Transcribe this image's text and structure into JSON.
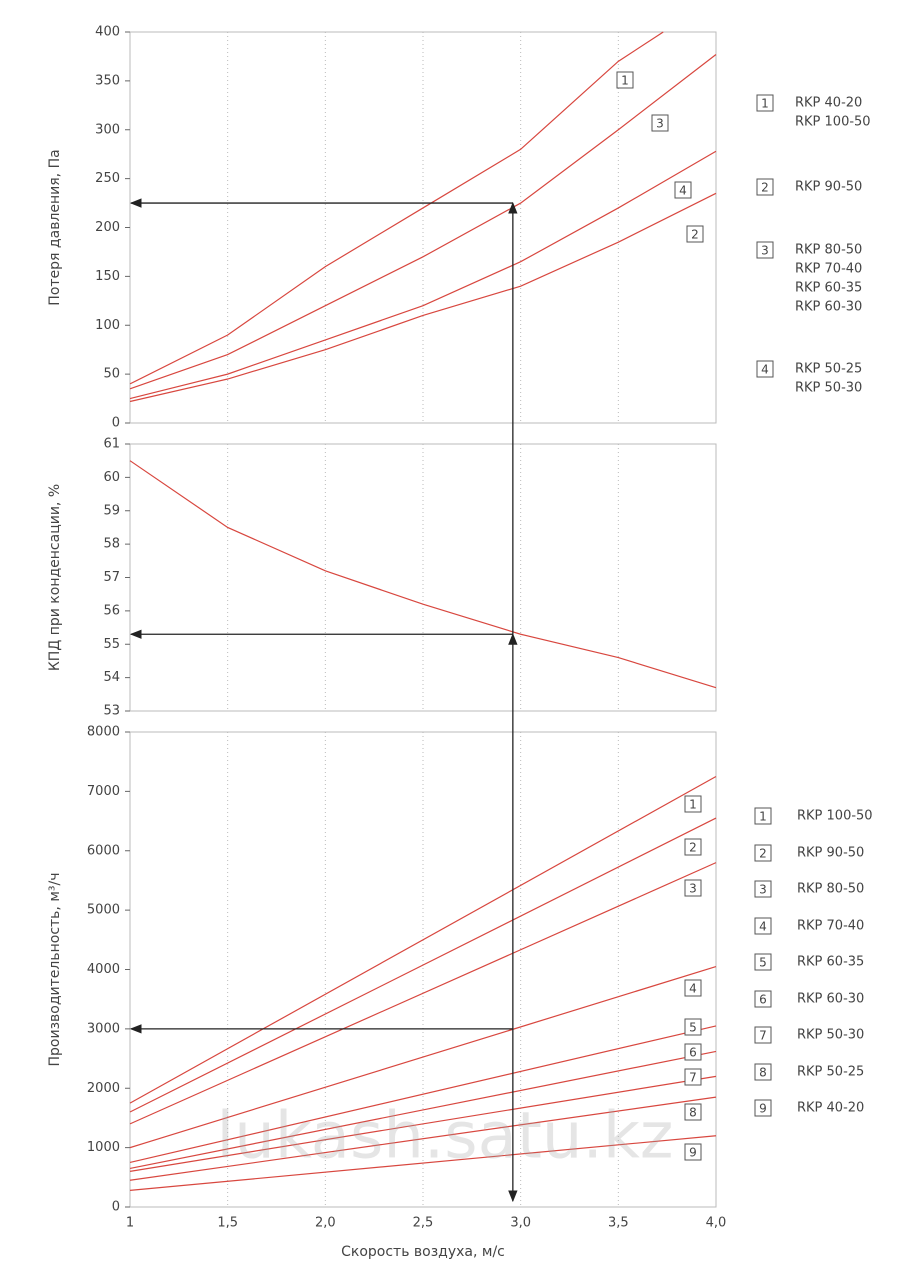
{
  "chart_data": [
    {
      "type": "line",
      "ylabel": "Потеря давления, Па",
      "ylim": [
        0,
        400
      ],
      "yticks": [
        0,
        50,
        100,
        150,
        200,
        250,
        300,
        350,
        400
      ],
      "xlim": [
        1,
        4
      ],
      "grid": true,
      "reading_value": 225,
      "series": [
        {
          "name": "1",
          "color": "#d8473f",
          "x": [
            1,
            1.5,
            2,
            2.5,
            3,
            3.5,
            3.73
          ],
          "values": [
            40,
            90,
            160,
            220,
            280,
            370,
            400
          ]
        },
        {
          "name": "3",
          "color": "#d8473f",
          "x": [
            1,
            1.5,
            2,
            2.5,
            3,
            3.5,
            4
          ],
          "values": [
            35,
            70,
            120,
            170,
            225,
            300,
            377
          ]
        },
        {
          "name": "4",
          "color": "#d8473f",
          "x": [
            1,
            1.5,
            2,
            2.5,
            3,
            3.5,
            4
          ],
          "values": [
            25,
            50,
            85,
            120,
            165,
            220,
            278
          ]
        },
        {
          "name": "2",
          "color": "#d8473f",
          "x": [
            1,
            1.5,
            2,
            2.5,
            3,
            3.5,
            4
          ],
          "values": [
            22,
            45,
            75,
            110,
            140,
            185,
            235
          ]
        }
      ],
      "legend": [
        {
          "key": "1",
          "models": [
            "RKP 40-20",
            "RKP 100-50"
          ]
        },
        {
          "key": "2",
          "models": [
            "RKP 90-50"
          ]
        },
        {
          "key": "3",
          "models": [
            "RKP 80-50",
            "RKP 70-40",
            "RKP 60-35",
            "RKP 60-30"
          ]
        },
        {
          "key": "4",
          "models": [
            "RKP 50-25",
            "RKP 50-30"
          ]
        }
      ]
    },
    {
      "type": "line",
      "ylabel": "КПД при конденсации, %",
      "ylim": [
        53,
        61
      ],
      "yticks": [
        53,
        54,
        55,
        56,
        57,
        58,
        59,
        60,
        61
      ],
      "xlim": [
        1,
        4
      ],
      "grid": true,
      "reading_value": 55.3,
      "series": [
        {
          "name": null,
          "color": "#d8473f",
          "x": [
            1,
            1.5,
            2,
            2.5,
            3,
            3.5,
            4
          ],
          "values": [
            60.5,
            58.5,
            57.2,
            56.2,
            55.3,
            54.6,
            53.7
          ]
        }
      ]
    },
    {
      "type": "line",
      "ylabel": "Производительность, м³/ч",
      "xlabel": "Скорость воздуха, м/с",
      "ylim": [
        0,
        8000
      ],
      "yticks": [
        0,
        1000,
        2000,
        3000,
        4000,
        5000,
        6000,
        7000,
        8000
      ],
      "xlim": [
        1,
        4
      ],
      "grid": true,
      "reading_value": 3000,
      "xticks": [
        1,
        {
          "value": 1.5,
          "label": "1,5"
        },
        {
          "value": 2,
          "label": "2,0"
        },
        {
          "value": 2.5,
          "label": "2,5"
        },
        {
          "value": 3,
          "label": "3,0"
        },
        {
          "value": 3.5,
          "label": "3,5"
        },
        {
          "value": 4,
          "label": "4,0"
        }
      ],
      "series": [
        {
          "name": "1",
          "color": "#d8473f",
          "x": [
            1,
            4
          ],
          "values": [
            1750,
            7250
          ]
        },
        {
          "name": "2",
          "color": "#d8473f",
          "x": [
            1,
            4
          ],
          "values": [
            1600,
            6550
          ]
        },
        {
          "name": "3",
          "color": "#d8473f",
          "x": [
            1,
            4
          ],
          "values": [
            1400,
            5800
          ]
        },
        {
          "name": "4",
          "color": "#d8473f",
          "x": [
            1,
            4
          ],
          "values": [
            1000,
            4050
          ]
        },
        {
          "name": "5",
          "color": "#d8473f",
          "x": [
            1,
            4
          ],
          "values": [
            750,
            3050
          ]
        },
        {
          "name": "6",
          "color": "#d8473f",
          "x": [
            1,
            4
          ],
          "values": [
            650,
            2620
          ]
        },
        {
          "name": "7",
          "color": "#d8473f",
          "x": [
            1,
            4
          ],
          "values": [
            600,
            2200
          ]
        },
        {
          "name": "8",
          "color": "#d8473f",
          "x": [
            1,
            4
          ],
          "values": [
            450,
            1850
          ]
        },
        {
          "name": "9",
          "color": "#d8473f",
          "x": [
            1,
            4
          ],
          "values": [
            280,
            1200
          ]
        }
      ],
      "legend": [
        {
          "key": "1",
          "models": [
            "RKP 100-50"
          ]
        },
        {
          "key": "2",
          "models": [
            "RKP 90-50"
          ]
        },
        {
          "key": "3",
          "models": [
            "RKP 80-50"
          ]
        },
        {
          "key": "4",
          "models": [
            "RKP 70-40"
          ]
        },
        {
          "key": "5",
          "models": [
            "RKP 60-35"
          ]
        },
        {
          "key": "6",
          "models": [
            "RKP 60-30"
          ]
        },
        {
          "key": "7",
          "models": [
            "RKP 50-30"
          ]
        },
        {
          "key": "8",
          "models": [
            "RKP 50-25"
          ]
        },
        {
          "key": "9",
          "models": [
            "RKP 40-20"
          ]
        }
      ]
    }
  ],
  "reading": {
    "x": 2.96
  },
  "watermark": "lukash.satu.kz"
}
